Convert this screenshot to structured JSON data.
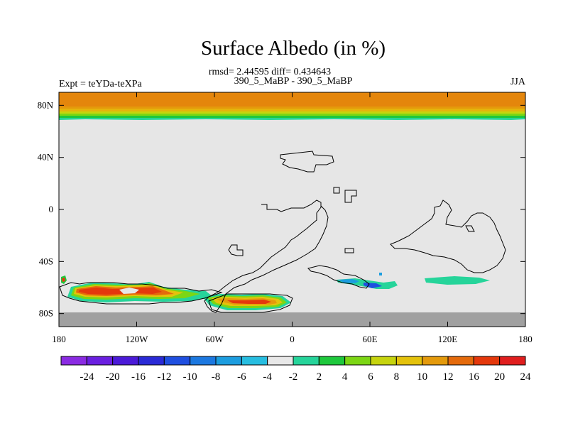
{
  "title": "Surface Albedo (in %)",
  "stats": "rmsd= 2.44595 diff= 0.434643",
  "case_label": "390_5_MaBP - 390_5_MaBP",
  "expt_label": "Expt = teYDa-teXPa",
  "season": "JJA",
  "map": {
    "lon_range": [
      -180,
      180
    ],
    "lat_range": [
      -90,
      90
    ],
    "lat_ticks": [
      {
        "value": 80,
        "label": "80N"
      },
      {
        "value": 40,
        "label": "40N"
      },
      {
        "value": 0,
        "label": "0"
      },
      {
        "value": -40,
        "label": "40S"
      },
      {
        "value": -80,
        "label": "80S"
      }
    ],
    "lon_ticks": [
      {
        "value": -180,
        "label": "180"
      },
      {
        "value": -120,
        "label": "120W"
      },
      {
        "value": -60,
        "label": "60W"
      },
      {
        "value": 0,
        "label": "0"
      },
      {
        "value": 60,
        "label": "60E"
      },
      {
        "value": 120,
        "label": "120E"
      },
      {
        "value": 180,
        "label": "180"
      }
    ],
    "background_color": "#e6e6e6",
    "missing_color": "#a0a0a0"
  },
  "colorbar": {
    "colors": [
      "#8a2be2",
      "#6a1fe0",
      "#4b1ad8",
      "#2a2ad6",
      "#1f4fe0",
      "#1c78e0",
      "#1c9ddf",
      "#27bde0",
      "#e8e8e8",
      "#26d49a",
      "#1ec83c",
      "#7cd614",
      "#c6d40e",
      "#e4c20c",
      "#e49a0c",
      "#e46a0c",
      "#e4380c",
      "#e01e1e"
    ],
    "labels": [
      "-24",
      "-20",
      "-16",
      "-12",
      "-10",
      "-8",
      "-6",
      "-4",
      "-2",
      "2",
      "4",
      "6",
      "8",
      "10",
      "12",
      "16",
      "20",
      "24"
    ]
  }
}
